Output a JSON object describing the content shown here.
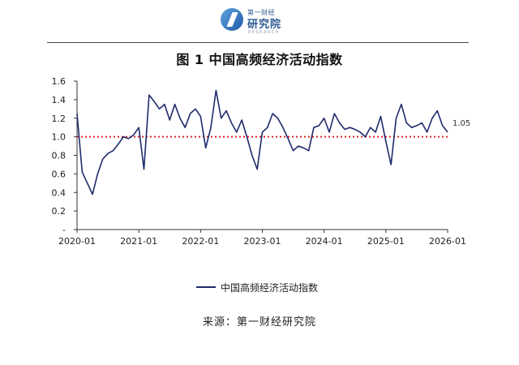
{
  "header": {
    "logo_top_text": "第一财经",
    "logo_main_text": "研究院",
    "logo_sub_text": "RESEARCH"
  },
  "figure_title": "图 1   中国高频经济活动指数",
  "legend_label": "中国高频经济活动指数",
  "source": "来源：第一财经研究院",
  "colors": {
    "series": "#1f2a6b",
    "reference": "#e02020",
    "axis": "#333333"
  },
  "chart_data": {
    "type": "line",
    "title": "图 1   中国高频经济活动指数",
    "xlabel": "",
    "ylabel": "",
    "x_ticks": [
      "2020-01",
      "2021-01",
      "2022-01",
      "2023-01",
      "2024-01",
      "2025-01",
      "2026-01"
    ],
    "y_ticks": [
      "-",
      "0.2",
      "0.4",
      "0.6",
      "0.8",
      "1.0",
      "1.2",
      "1.4",
      "1.6"
    ],
    "ylim": [
      0,
      1.6
    ],
    "grid": false,
    "legend_position": "bottom",
    "reference_line": {
      "value": 1.0,
      "style": "dotted"
    },
    "last_value_label": "1.05",
    "series": [
      {
        "name": "中国高频经济活动指数",
        "x": [
          "2020-01",
          "2020-02",
          "2020-03",
          "2020-04",
          "2020-05",
          "2020-06",
          "2020-07",
          "2020-08",
          "2020-09",
          "2020-10",
          "2020-11",
          "2020-12",
          "2021-01",
          "2021-02",
          "2021-03",
          "2021-04",
          "2021-05",
          "2021-06",
          "2021-07",
          "2021-08",
          "2021-09",
          "2021-10",
          "2021-11",
          "2021-12",
          "2022-01",
          "2022-02",
          "2022-03",
          "2022-04",
          "2022-05",
          "2022-06",
          "2022-07",
          "2022-08",
          "2022-09",
          "2022-10",
          "2022-11",
          "2022-12",
          "2023-01",
          "2023-02",
          "2023-03",
          "2023-04",
          "2023-05",
          "2023-06",
          "2023-07",
          "2023-08",
          "2023-09",
          "2023-10",
          "2023-11",
          "2023-12",
          "2024-01",
          "2024-02",
          "2024-03",
          "2024-04",
          "2024-05",
          "2024-06",
          "2024-07",
          "2024-08",
          "2024-09",
          "2024-10",
          "2024-11",
          "2024-12",
          "2025-01",
          "2025-02",
          "2025-03",
          "2025-04",
          "2025-05",
          "2025-06",
          "2025-07",
          "2025-08",
          "2025-09",
          "2025-10",
          "2025-11",
          "2025-12",
          "2026-01"
        ],
        "values": [
          1.25,
          0.62,
          0.5,
          0.38,
          0.6,
          0.76,
          0.82,
          0.85,
          0.92,
          1.0,
          0.98,
          1.02,
          1.1,
          0.65,
          1.45,
          1.38,
          1.3,
          1.35,
          1.18,
          1.35,
          1.2,
          1.1,
          1.25,
          1.3,
          1.22,
          0.88,
          1.1,
          1.5,
          1.2,
          1.28,
          1.15,
          1.05,
          1.18,
          1.0,
          0.8,
          0.65,
          1.05,
          1.1,
          1.25,
          1.2,
          1.1,
          0.98,
          0.85,
          0.9,
          0.88,
          0.85,
          1.1,
          1.12,
          1.2,
          1.05,
          1.25,
          1.15,
          1.08,
          1.1,
          1.08,
          1.05,
          1.0,
          1.1,
          1.05,
          1.22,
          0.95,
          0.7,
          1.2,
          1.35,
          1.15,
          1.1,
          1.12,
          1.15,
          1.05,
          1.2,
          1.28,
          1.12,
          1.05
        ]
      }
    ]
  }
}
